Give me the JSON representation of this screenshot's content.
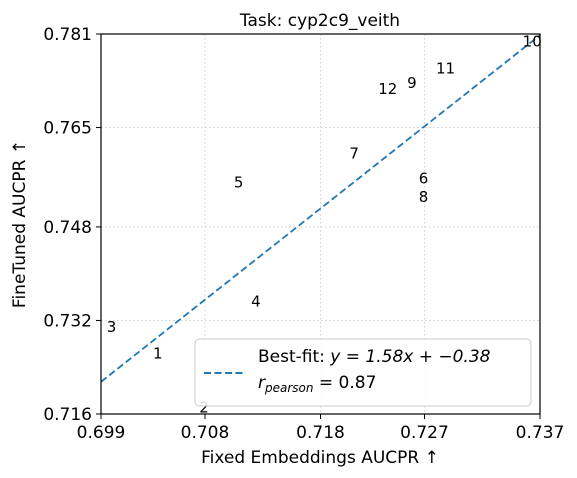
{
  "chart_data": {
    "type": "scatter",
    "title": "Task: cyp2c9_veith",
    "xlabel": "Fixed Embeddings AUCPR ↑",
    "ylabel": "FineTuned AUCPR ↑",
    "xlim": [
      0.699,
      0.737
    ],
    "ylim": [
      0.716,
      0.781
    ],
    "xticks": [
      0.699,
      0.708,
      0.718,
      0.727,
      0.737
    ],
    "xtick_labels": [
      "0.699",
      "0.708",
      "0.718",
      "0.727",
      "0.737"
    ],
    "yticks": [
      0.716,
      0.732,
      0.748,
      0.765,
      0.781
    ],
    "ytick_labels": [
      "0.716",
      "0.732",
      "0.748",
      "0.765",
      "0.781"
    ],
    "grid": true,
    "grid_style": "dotted",
    "marker": "text-label",
    "points": [
      {
        "label": "1",
        "x": 0.7035,
        "y": 0.7263
      },
      {
        "label": "2",
        "x": 0.7075,
        "y": 0.717
      },
      {
        "label": "3",
        "x": 0.6995,
        "y": 0.7308
      },
      {
        "label": "4",
        "x": 0.712,
        "y": 0.7352
      },
      {
        "label": "5",
        "x": 0.7105,
        "y": 0.7555
      },
      {
        "label": "6",
        "x": 0.7265,
        "y": 0.7562
      },
      {
        "label": "7",
        "x": 0.7205,
        "y": 0.7605
      },
      {
        "label": "8",
        "x": 0.7265,
        "y": 0.753
      },
      {
        "label": "9",
        "x": 0.7255,
        "y": 0.7725
      },
      {
        "label": "10",
        "x": 0.7355,
        "y": 0.7796
      },
      {
        "label": "11",
        "x": 0.728,
        "y": 0.775
      },
      {
        "label": "12",
        "x": 0.723,
        "y": 0.7715
      }
    ],
    "fit_line": {
      "slope": 1.58,
      "intercept": -0.38,
      "color": "#1f77b4",
      "style": "dashed",
      "x_range": [
        0.699,
        0.737
      ],
      "y_range": [
        0.7215,
        0.7808
      ]
    },
    "legend": {
      "placement": "lower-right",
      "fit_label": "Best-fit: $y = 1.58x + -0.38$",
      "fit_label_prefix": "Best-fit: ",
      "fit_label_math": "y = 1.58x + −0.38",
      "r_label": "$r_{pearson} = 0.87$",
      "r_symbol": "r",
      "r_subscript": "pearson",
      "r_value": " = 0.87"
    }
  }
}
